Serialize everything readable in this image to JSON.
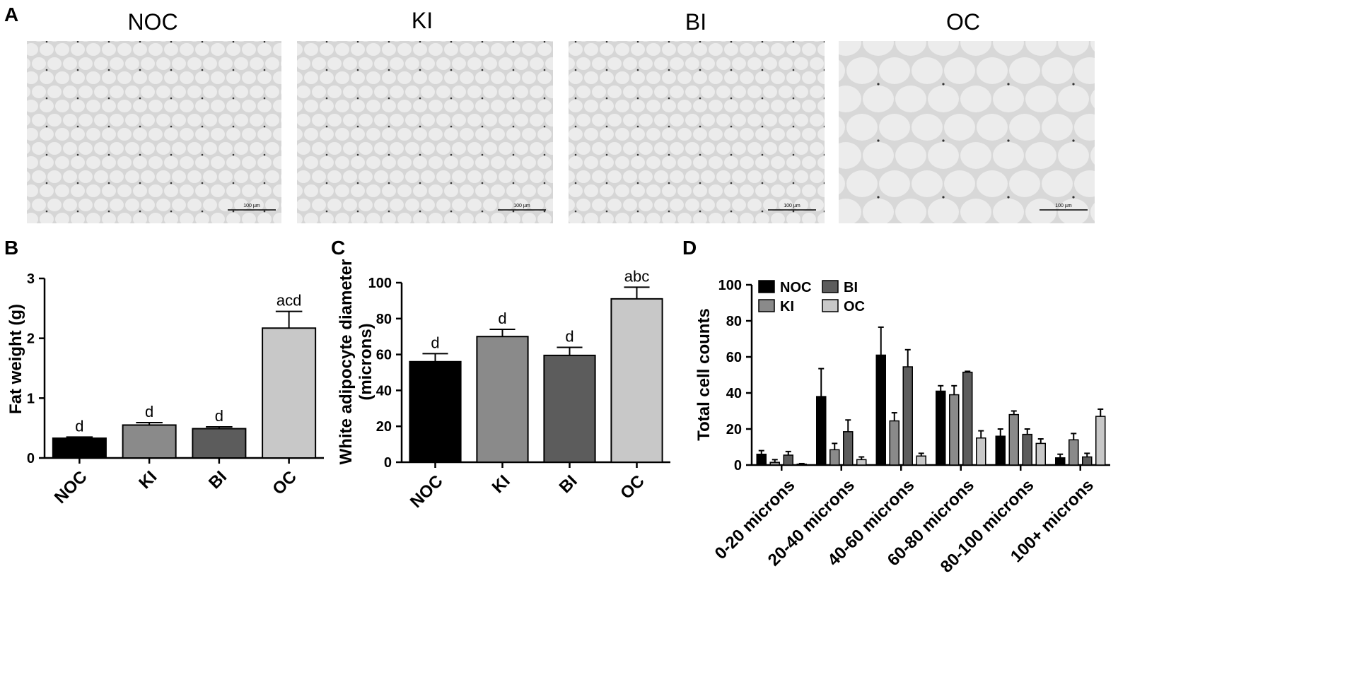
{
  "panel_labels": [
    "A",
    "B",
    "C",
    "D"
  ],
  "micrographs": {
    "titles": [
      "NOC",
      "KI",
      "BI",
      "OC"
    ],
    "scale_bar_label": "100 µm"
  },
  "colors": {
    "NOC": "#000000",
    "KI": "#8a8a8a",
    "BI": "#5c5c5c",
    "OC": "#c8c8c8",
    "micrograph_bg": "#d9d9d9",
    "cell_fill": "#ececec"
  },
  "chart_data": [
    {
      "id": "B",
      "type": "bar",
      "categories": [
        "NOC",
        "KI",
        "BI",
        "OC"
      ],
      "values": [
        0.33,
        0.55,
        0.49,
        2.17
      ],
      "errors": [
        0.02,
        0.04,
        0.03,
        0.28
      ],
      "significance": [
        "d",
        "d",
        "d",
        "acd"
      ],
      "title": "",
      "xlabel": "",
      "ylabel": "Fat weight (g)",
      "ylim": [
        0,
        3
      ],
      "yticks": [
        0,
        1,
        2,
        3
      ],
      "grid": false,
      "legend": "none"
    },
    {
      "id": "C",
      "type": "bar",
      "categories": [
        "NOC",
        "KI",
        "BI",
        "OC"
      ],
      "values": [
        56,
        70,
        59.5,
        91
      ],
      "errors": [
        4.5,
        4,
        4.5,
        6.5
      ],
      "significance": [
        "d",
        "d",
        "d",
        "abc"
      ],
      "title": "",
      "xlabel": "",
      "ylabel": [
        "White adipocyte diameter",
        "(microns)"
      ],
      "ylim": [
        0,
        100
      ],
      "yticks": [
        0,
        20,
        40,
        60,
        80,
        100
      ],
      "grid": false,
      "legend": "none"
    },
    {
      "id": "D",
      "type": "bar",
      "categories": [
        "0-20 microns",
        "20-40 microns",
        "40-60 microns",
        "60-80 microns",
        "80-100 microns",
        "100+ microns"
      ],
      "series": [
        {
          "name": "NOC",
          "values": [
            6,
            38,
            61,
            41,
            16,
            4
          ],
          "errors": [
            2,
            15.5,
            15.5,
            3,
            4,
            2
          ]
        },
        {
          "name": "KI",
          "values": [
            1.5,
            8.5,
            24.5,
            39,
            28,
            14
          ],
          "errors": [
            1.5,
            3.5,
            4.5,
            5,
            2,
            3.5
          ]
        },
        {
          "name": "BI",
          "values": [
            5.5,
            18.5,
            54.5,
            51.5,
            17,
            4.5
          ],
          "errors": [
            2,
            6.5,
            9.5,
            0.5,
            3,
            2
          ]
        },
        {
          "name": "OC",
          "values": [
            0.5,
            3,
            5,
            15,
            12,
            27
          ],
          "errors": [
            0.3,
            1.5,
            1.5,
            4,
            2.5,
            4
          ]
        }
      ],
      "title": "",
      "xlabel": "",
      "ylabel": "Total cell counts",
      "ylim": [
        0,
        100
      ],
      "yticks": [
        0,
        20,
        40,
        60,
        80,
        100
      ],
      "grid": false,
      "legend": "top-left"
    }
  ]
}
